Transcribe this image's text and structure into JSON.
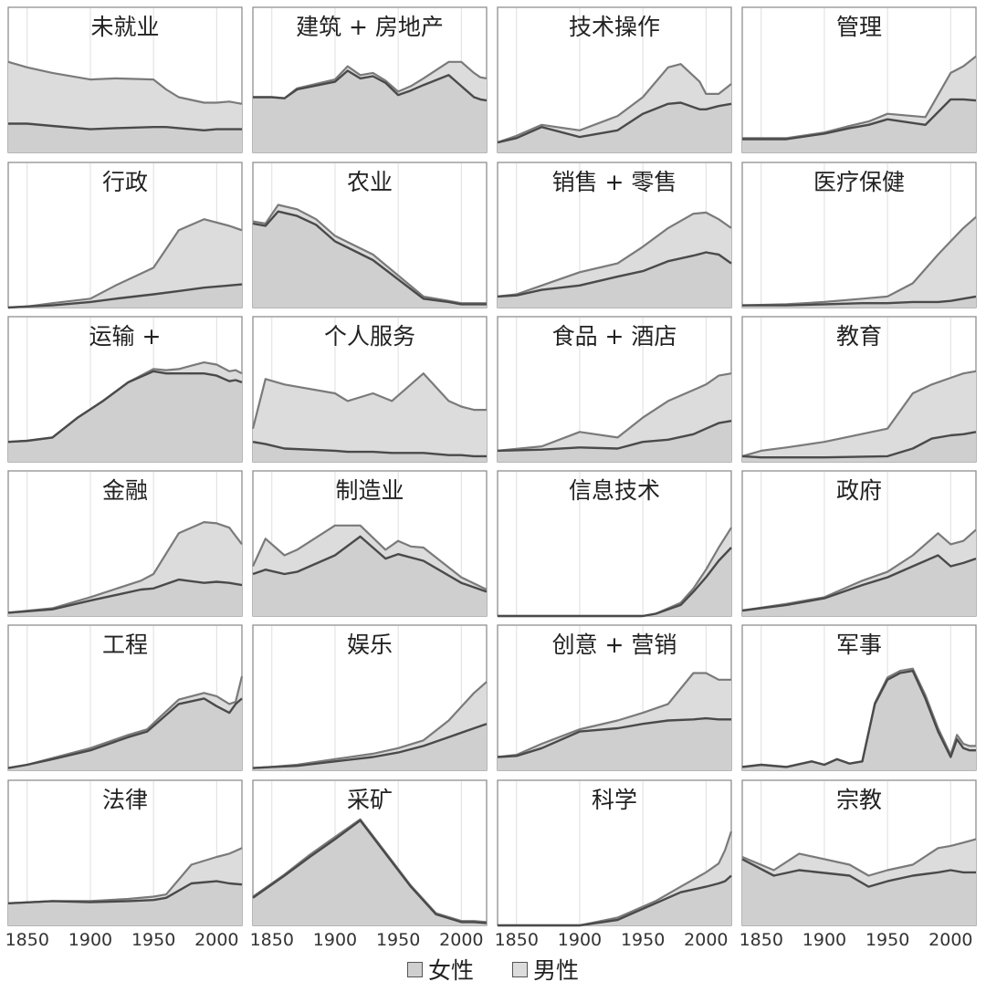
{
  "chart_data": {
    "type": "area",
    "x_ticks": [
      1850,
      1900,
      1950,
      2000
    ],
    "xlim": [
      1835,
      2020
    ],
    "legend": [
      {
        "label": "女性",
        "color": "#cfcfcf"
      },
      {
        "label": "男性",
        "color": "#dcdcdc"
      }
    ],
    "panels": [
      {
        "title": "未就业",
        "years": [
          1835,
          1850,
          1870,
          1900,
          1920,
          1950,
          1960,
          1970,
          1990,
          2000,
          2010,
          2020
        ],
        "lower": [
          0.26,
          0.26,
          0.24,
          0.21,
          0.22,
          0.23,
          0.23,
          0.22,
          0.2,
          0.21,
          0.21,
          0.21
        ],
        "upper": [
          0.82,
          0.77,
          0.72,
          0.66,
          0.67,
          0.66,
          0.57,
          0.5,
          0.45,
          0.45,
          0.46,
          0.44
        ]
      },
      {
        "title": "建筑 + 房地产",
        "years": [
          1835,
          1850,
          1860,
          1870,
          1900,
          1910,
          1920,
          1930,
          1940,
          1950,
          1960,
          1970,
          1990,
          2000,
          2010,
          2015,
          2020
        ],
        "lower": [
          0.5,
          0.5,
          0.49,
          0.57,
          0.64,
          0.74,
          0.67,
          0.69,
          0.63,
          0.52,
          0.56,
          0.61,
          0.7,
          0.6,
          0.5,
          0.48,
          0.47
        ],
        "upper": [
          0.5,
          0.5,
          0.49,
          0.58,
          0.66,
          0.78,
          0.7,
          0.72,
          0.65,
          0.55,
          0.6,
          0.67,
          0.82,
          0.82,
          0.72,
          0.68,
          0.67
        ]
      },
      {
        "title": "技术操作",
        "years": [
          1835,
          1850,
          1870,
          1900,
          1930,
          1950,
          1970,
          1980,
          1995,
          2000,
          2010,
          2020
        ],
        "lower": [
          0.09,
          0.13,
          0.23,
          0.14,
          0.2,
          0.35,
          0.44,
          0.45,
          0.39,
          0.39,
          0.42,
          0.44
        ],
        "upper": [
          0.09,
          0.15,
          0.25,
          0.2,
          0.33,
          0.5,
          0.77,
          0.8,
          0.64,
          0.53,
          0.53,
          0.62
        ]
      },
      {
        "title": "管理",
        "years": [
          1835,
          1870,
          1900,
          1920,
          1935,
          1950,
          1980,
          2000,
          2010,
          2020
        ],
        "lower": [
          0.12,
          0.12,
          0.17,
          0.22,
          0.25,
          0.3,
          0.25,
          0.48,
          0.48,
          0.47
        ],
        "upper": [
          0.13,
          0.13,
          0.18,
          0.24,
          0.28,
          0.35,
          0.32,
          0.72,
          0.78,
          0.87
        ]
      },
      {
        "title": "行政",
        "years": [
          1835,
          1850,
          1870,
          1900,
          1920,
          1950,
          1970,
          1990,
          2010,
          2020
        ],
        "lower": [
          0.0,
          0.01,
          0.02,
          0.05,
          0.08,
          0.12,
          0.15,
          0.18,
          0.2,
          0.21
        ],
        "upper": [
          0.0,
          0.01,
          0.04,
          0.08,
          0.2,
          0.36,
          0.7,
          0.8,
          0.74,
          0.7
        ]
      },
      {
        "title": "农业",
        "years": [
          1835,
          1845,
          1855,
          1870,
          1885,
          1900,
          1930,
          1970,
          1990,
          2000,
          2020
        ],
        "lower": [
          0.76,
          0.74,
          0.87,
          0.83,
          0.75,
          0.6,
          0.43,
          0.08,
          0.05,
          0.03,
          0.03
        ],
        "upper": [
          0.78,
          0.76,
          0.93,
          0.89,
          0.8,
          0.65,
          0.48,
          0.1,
          0.06,
          0.04,
          0.04
        ]
      },
      {
        "title": "销售 + 零售",
        "years": [
          1835,
          1850,
          1870,
          1900,
          1930,
          1950,
          1970,
          1990,
          2000,
          2010,
          2020
        ],
        "lower": [
          0.1,
          0.11,
          0.16,
          0.2,
          0.28,
          0.33,
          0.42,
          0.47,
          0.5,
          0.48,
          0.4
        ],
        "upper": [
          0.1,
          0.12,
          0.2,
          0.32,
          0.4,
          0.55,
          0.72,
          0.85,
          0.86,
          0.8,
          0.72
        ]
      },
      {
        "title": "医疗保健",
        "years": [
          1835,
          1870,
          1900,
          1930,
          1950,
          1970,
          1990,
          2000,
          2010,
          2020
        ],
        "lower": [
          0.02,
          0.02,
          0.03,
          0.04,
          0.04,
          0.05,
          0.05,
          0.06,
          0.08,
          0.1
        ],
        "upper": [
          0.02,
          0.03,
          0.05,
          0.08,
          0.1,
          0.22,
          0.48,
          0.6,
          0.72,
          0.82
        ]
      },
      {
        "title": "运输 +",
        "years": [
          1835,
          1850,
          1870,
          1890,
          1910,
          1930,
          1950,
          1960,
          1970,
          1980,
          1990,
          2000,
          2010,
          2015,
          2020
        ],
        "lower": [
          0.18,
          0.19,
          0.22,
          0.4,
          0.55,
          0.72,
          0.82,
          0.8,
          0.8,
          0.8,
          0.8,
          0.78,
          0.73,
          0.74,
          0.72
        ],
        "upper": [
          0.18,
          0.19,
          0.22,
          0.4,
          0.55,
          0.72,
          0.84,
          0.83,
          0.84,
          0.87,
          0.9,
          0.88,
          0.82,
          0.83,
          0.8
        ]
      },
      {
        "title": "个人服务",
        "years": [
          1835,
          1845,
          1860,
          1900,
          1910,
          1930,
          1945,
          1970,
          1990,
          2000,
          2010,
          2020
        ],
        "lower": [
          0.18,
          0.16,
          0.12,
          0.1,
          0.09,
          0.09,
          0.08,
          0.08,
          0.06,
          0.06,
          0.05,
          0.05
        ],
        "upper": [
          0.3,
          0.75,
          0.7,
          0.62,
          0.55,
          0.62,
          0.55,
          0.8,
          0.55,
          0.5,
          0.47,
          0.47
        ]
      },
      {
        "title": "食品 + 酒店",
        "years": [
          1835,
          1870,
          1900,
          1930,
          1950,
          1970,
          1990,
          2000,
          2010,
          2020
        ],
        "lower": [
          0.1,
          0.11,
          0.13,
          0.12,
          0.18,
          0.2,
          0.25,
          0.3,
          0.35,
          0.37
        ],
        "upper": [
          0.1,
          0.14,
          0.27,
          0.22,
          0.4,
          0.55,
          0.65,
          0.7,
          0.78,
          0.8
        ]
      },
      {
        "title": "教育",
        "years": [
          1835,
          1850,
          1870,
          1900,
          1950,
          1970,
          1985,
          2000,
          2010,
          2020
        ],
        "lower": [
          0.05,
          0.04,
          0.04,
          0.04,
          0.05,
          0.12,
          0.21,
          0.24,
          0.25,
          0.27
        ],
        "upper": [
          0.05,
          0.1,
          0.13,
          0.18,
          0.3,
          0.62,
          0.7,
          0.76,
          0.8,
          0.82
        ]
      },
      {
        "title": "金融",
        "years": [
          1835,
          1870,
          1900,
          1940,
          1950,
          1970,
          1990,
          2000,
          2010,
          2020
        ],
        "lower": [
          0.03,
          0.06,
          0.14,
          0.24,
          0.25,
          0.33,
          0.3,
          0.31,
          0.3,
          0.28
        ],
        "upper": [
          0.03,
          0.07,
          0.17,
          0.32,
          0.38,
          0.75,
          0.85,
          0.84,
          0.8,
          0.65
        ]
      },
      {
        "title": "制造业",
        "years": [
          1835,
          1845,
          1860,
          1870,
          1900,
          1920,
          1940,
          1950,
          1960,
          1970,
          2000,
          2020
        ],
        "lower": [
          0.38,
          0.42,
          0.38,
          0.4,
          0.55,
          0.72,
          0.52,
          0.56,
          0.53,
          0.5,
          0.3,
          0.22
        ],
        "upper": [
          0.45,
          0.7,
          0.55,
          0.6,
          0.82,
          0.82,
          0.6,
          0.68,
          0.63,
          0.62,
          0.35,
          0.24
        ]
      },
      {
        "title": "信息技术",
        "years": [
          1835,
          1950,
          1960,
          1980,
          1990,
          2000,
          2010,
          2020
        ],
        "lower": [
          0.0,
          0.0,
          0.02,
          0.1,
          0.22,
          0.35,
          0.5,
          0.62
        ],
        "upper": [
          0.0,
          0.0,
          0.02,
          0.12,
          0.25,
          0.42,
          0.62,
          0.8
        ]
      },
      {
        "title": "政府",
        "years": [
          1835,
          1870,
          1900,
          1930,
          1950,
          1970,
          1990,
          2000,
          2010,
          2020
        ],
        "lower": [
          0.05,
          0.1,
          0.16,
          0.28,
          0.35,
          0.45,
          0.55,
          0.45,
          0.48,
          0.52
        ],
        "upper": [
          0.05,
          0.11,
          0.17,
          0.32,
          0.4,
          0.55,
          0.75,
          0.65,
          0.68,
          0.78
        ]
      },
      {
        "title": "工程",
        "years": [
          1835,
          1850,
          1870,
          1900,
          1930,
          1945,
          1955,
          1970,
          1990,
          2000,
          2010,
          2015,
          2020
        ],
        "lower": [
          0.02,
          0.05,
          0.1,
          0.18,
          0.3,
          0.35,
          0.45,
          0.6,
          0.65,
          0.58,
          0.52,
          0.6,
          0.65
        ],
        "upper": [
          0.02,
          0.05,
          0.11,
          0.2,
          0.32,
          0.37,
          0.48,
          0.64,
          0.7,
          0.67,
          0.6,
          0.62,
          0.85
        ]
      },
      {
        "title": "娱乐",
        "years": [
          1835,
          1850,
          1870,
          1900,
          1930,
          1950,
          1970,
          1990,
          2010,
          2020
        ],
        "lower": [
          0.02,
          0.03,
          0.04,
          0.08,
          0.12,
          0.16,
          0.22,
          0.3,
          0.38,
          0.42
        ],
        "upper": [
          0.02,
          0.03,
          0.05,
          0.1,
          0.15,
          0.2,
          0.27,
          0.45,
          0.7,
          0.8
        ]
      },
      {
        "title": "创意 + 营销",
        "years": [
          1835,
          1850,
          1870,
          1900,
          1930,
          1950,
          1970,
          1990,
          2000,
          2010,
          2020
        ],
        "lower": [
          0.12,
          0.13,
          0.2,
          0.35,
          0.38,
          0.42,
          0.45,
          0.46,
          0.47,
          0.46,
          0.46
        ],
        "upper": [
          0.12,
          0.14,
          0.24,
          0.37,
          0.45,
          0.52,
          0.6,
          0.88,
          0.88,
          0.82,
          0.82
        ]
      },
      {
        "title": "军事",
        "years": [
          1835,
          1850,
          1870,
          1890,
          1900,
          1910,
          1920,
          1930,
          1940,
          1950,
          1960,
          1970,
          1980,
          1990,
          2000,
          2005,
          2010,
          2015,
          2020
        ],
        "lower": [
          0.03,
          0.05,
          0.03,
          0.08,
          0.05,
          0.1,
          0.06,
          0.08,
          0.6,
          0.82,
          0.88,
          0.9,
          0.65,
          0.35,
          0.12,
          0.28,
          0.2,
          0.18,
          0.18
        ],
        "upper": [
          0.03,
          0.05,
          0.03,
          0.08,
          0.05,
          0.1,
          0.06,
          0.08,
          0.61,
          0.84,
          0.9,
          0.92,
          0.68,
          0.38,
          0.14,
          0.32,
          0.24,
          0.22,
          0.22
        ]
      },
      {
        "title": "法律",
        "years": [
          1835,
          1870,
          1900,
          1930,
          1950,
          1960,
          1980,
          2000,
          2010,
          2020
        ],
        "lower": [
          0.2,
          0.22,
          0.21,
          0.22,
          0.23,
          0.25,
          0.38,
          0.4,
          0.38,
          0.37
        ],
        "upper": [
          0.2,
          0.22,
          0.22,
          0.24,
          0.26,
          0.28,
          0.55,
          0.62,
          0.65,
          0.7
        ]
      },
      {
        "title": "采矿",
        "years": [
          1835,
          1860,
          1880,
          1900,
          1920,
          1940,
          1960,
          1980,
          2000,
          2010,
          2020
        ],
        "lower": [
          0.25,
          0.45,
          0.62,
          0.78,
          0.95,
          0.65,
          0.35,
          0.1,
          0.03,
          0.03,
          0.02
        ],
        "upper": [
          0.26,
          0.46,
          0.64,
          0.8,
          0.96,
          0.66,
          0.36,
          0.11,
          0.04,
          0.04,
          0.03
        ]
      },
      {
        "title": "科学",
        "years": [
          1835,
          1900,
          1930,
          1940,
          1960,
          1980,
          2000,
          2010,
          2015,
          2020
        ],
        "lower": [
          0.0,
          0.0,
          0.05,
          0.1,
          0.2,
          0.3,
          0.35,
          0.38,
          0.4,
          0.45
        ],
        "upper": [
          0.0,
          0.0,
          0.07,
          0.12,
          0.22,
          0.35,
          0.48,
          0.56,
          0.68,
          0.85
        ]
      },
      {
        "title": "宗教",
        "years": [
          1835,
          1860,
          1880,
          1920,
          1935,
          1950,
          1970,
          1990,
          2000,
          2010,
          2020
        ],
        "lower": [
          0.6,
          0.45,
          0.5,
          0.45,
          0.35,
          0.4,
          0.45,
          0.48,
          0.5,
          0.48,
          0.48
        ],
        "upper": [
          0.62,
          0.5,
          0.65,
          0.55,
          0.45,
          0.5,
          0.55,
          0.7,
          0.72,
          0.75,
          0.78
        ]
      }
    ]
  }
}
